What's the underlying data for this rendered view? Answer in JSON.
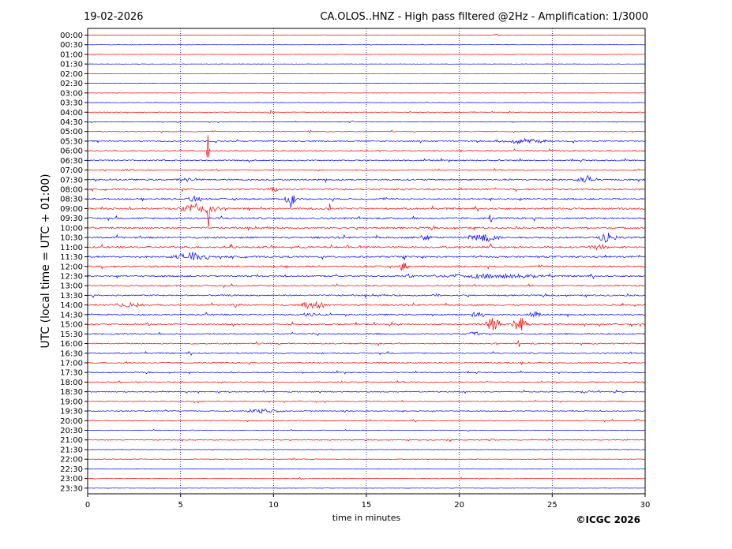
{
  "header": {
    "date": "19-02-2026",
    "title": "CA.OLOS..HNZ - High pass filtered @2Hz - Amplification: 1/3000"
  },
  "footer": {
    "copyright": "©ICGC 2026"
  },
  "chart_data": {
    "type": "line",
    "title": "CA.OLOS..HNZ - High pass filtered @2Hz - Amplification: 1/3000",
    "xlabel": "time in minutes",
    "ylabel": "UTC (local time = UTC + 01:00)",
    "xlim": [
      0,
      30
    ],
    "x_ticks": [
      0,
      5,
      10,
      15,
      20,
      25,
      30
    ],
    "x_tick_labels": [
      "0",
      "5",
      "10",
      "15",
      "20",
      "25",
      "30"
    ],
    "y_tick_labels": [
      "00:00",
      "00:30",
      "01:00",
      "01:30",
      "02:00",
      "02:30",
      "03:00",
      "03:30",
      "04:00",
      "04:30",
      "05:00",
      "05:30",
      "06:00",
      "06:30",
      "07:00",
      "07:30",
      "08:00",
      "08:30",
      "09:00",
      "09:30",
      "10:00",
      "10:30",
      "11:00",
      "11:30",
      "12:00",
      "12:30",
      "13:00",
      "13:30",
      "14:00",
      "14:30",
      "15:00",
      "15:30",
      "16:00",
      "16:30",
      "17:00",
      "17:30",
      "18:00",
      "18:30",
      "19:00",
      "19:30",
      "20:00",
      "20:30",
      "21:00",
      "21:30",
      "22:00",
      "22:30",
      "23:00",
      "23:30"
    ],
    "grid": "vertical dotted at 5-minute intervals",
    "colors": {
      "even_rows": "#ff0000",
      "odd_rows": "#0000ff",
      "grid": "#00008b"
    },
    "noise_level": [
      0.2,
      0.15,
      0.15,
      0.15,
      0.15,
      0.15,
      0.15,
      0.2,
      0.3,
      0.35,
      0.5,
      0.7,
      0.7,
      0.7,
      0.6,
      0.9,
      0.9,
      0.9,
      1.0,
      1.0,
      1.0,
      1.0,
      1.0,
      1.0,
      0.9,
      0.9,
      0.8,
      0.8,
      0.8,
      0.8,
      0.8,
      0.7,
      0.7,
      0.7,
      0.6,
      0.6,
      0.6,
      0.6,
      0.5,
      0.5,
      0.5,
      0.4,
      0.4,
      0.3,
      0.3,
      0.25,
      0.25,
      0.2
    ],
    "events": [
      {
        "row": 0,
        "minute": 22.0,
        "amp": 2.0,
        "dur": 0.2
      },
      {
        "row": 8,
        "minute": 9.9,
        "amp": 2.5,
        "dur": 0.2
      },
      {
        "row": 9,
        "minute": 14.2,
        "amp": 2.0,
        "dur": 0.15
      },
      {
        "row": 10,
        "minute": 12.0,
        "amp": 2.0,
        "dur": 0.2
      },
      {
        "row": 11,
        "minute": 23.5,
        "amp": 3.0,
        "dur": 1.8
      },
      {
        "row": 12,
        "minute": 6.5,
        "amp": 35.0,
        "dur": 0.08
      },
      {
        "row": 14,
        "minute": 2.2,
        "amp": 2.0,
        "dur": 0.4
      },
      {
        "row": 15,
        "minute": 26.9,
        "amp": 6.0,
        "dur": 0.6
      },
      {
        "row": 15,
        "minute": 5.3,
        "amp": 3.0,
        "dur": 0.5
      },
      {
        "row": 16,
        "minute": 10.0,
        "amp": 3.0,
        "dur": 0.3
      },
      {
        "row": 17,
        "minute": 10.9,
        "amp": 10.0,
        "dur": 0.3
      },
      {
        "row": 17,
        "minute": 5.8,
        "amp": 4.0,
        "dur": 0.6
      },
      {
        "row": 18,
        "minute": 6.0,
        "amp": 8.0,
        "dur": 1.2
      },
      {
        "row": 18,
        "minute": 13.0,
        "amp": 7.0,
        "dur": 0.1
      },
      {
        "row": 18,
        "minute": 6.5,
        "amp": 30.0,
        "dur": 0.06
      },
      {
        "row": 19,
        "minute": 21.7,
        "amp": 12.0,
        "dur": 0.1
      },
      {
        "row": 21,
        "minute": 21.3,
        "amp": 6.0,
        "dur": 1.0
      },
      {
        "row": 21,
        "minute": 28.0,
        "amp": 7.0,
        "dur": 0.5
      },
      {
        "row": 21,
        "minute": 18.2,
        "amp": 4.0,
        "dur": 0.4
      },
      {
        "row": 22,
        "minute": 27.5,
        "amp": 4.0,
        "dur": 0.6
      },
      {
        "row": 22,
        "minute": 21.7,
        "amp": 8.0,
        "dur": 0.1
      },
      {
        "row": 23,
        "minute": 5.6,
        "amp": 6.0,
        "dur": 1.2
      },
      {
        "row": 23,
        "minute": 17.0,
        "amp": 14.0,
        "dur": 0.08
      },
      {
        "row": 24,
        "minute": 17.0,
        "amp": 8.0,
        "dur": 0.3
      },
      {
        "row": 25,
        "minute": 21.8,
        "amp": 3.0,
        "dur": 3.2
      },
      {
        "row": 25,
        "minute": 17.3,
        "amp": 3.0,
        "dur": 0.3
      },
      {
        "row": 27,
        "minute": 18.8,
        "amp": 3.0,
        "dur": 0.3
      },
      {
        "row": 28,
        "minute": 2.2,
        "amp": 4.0,
        "dur": 0.9
      },
      {
        "row": 28,
        "minute": 12.2,
        "amp": 5.0,
        "dur": 1.0
      },
      {
        "row": 28,
        "minute": 8.0,
        "amp": 3.0,
        "dur": 0.4
      },
      {
        "row": 29,
        "minute": 12.0,
        "amp": 3.0,
        "dur": 0.5
      },
      {
        "row": 29,
        "minute": 21.0,
        "amp": 6.0,
        "dur": 0.4
      },
      {
        "row": 29,
        "minute": 24.1,
        "amp": 4.0,
        "dur": 0.5
      },
      {
        "row": 30,
        "minute": 21.8,
        "amp": 9.0,
        "dur": 0.5
      },
      {
        "row": 30,
        "minute": 23.3,
        "amp": 10.0,
        "dur": 0.5
      },
      {
        "row": 30,
        "minute": 3.2,
        "amp": 3.0,
        "dur": 0.2
      },
      {
        "row": 31,
        "minute": 20.8,
        "amp": 3.0,
        "dur": 0.3
      },
      {
        "row": 32,
        "minute": 23.2,
        "amp": 5.0,
        "dur": 0.1
      },
      {
        "row": 35,
        "minute": 12.6,
        "amp": 2.0,
        "dur": 0.1
      },
      {
        "row": 37,
        "minute": 26.8,
        "amp": 2.0,
        "dur": 0.4
      },
      {
        "row": 39,
        "minute": 9.5,
        "amp": 3.0,
        "dur": 1.2
      },
      {
        "row": 39,
        "minute": 13.8,
        "amp": 2.0,
        "dur": 0.2
      },
      {
        "row": 40,
        "minute": 29.6,
        "amp": 2.0,
        "dur": 0.3
      },
      {
        "row": 42,
        "minute": 19.5,
        "amp": 2.0,
        "dur": 0.2
      },
      {
        "row": 42,
        "minute": 21.7,
        "amp": 2.0,
        "dur": 0.3
      },
      {
        "row": 44,
        "minute": 11.2,
        "amp": 2.0,
        "dur": 0.2
      },
      {
        "row": 46,
        "minute": 11.5,
        "amp": 2.0,
        "dur": 0.2
      },
      {
        "row": 46,
        "minute": 20.1,
        "amp": 1.5,
        "dur": 0.2
      }
    ]
  }
}
